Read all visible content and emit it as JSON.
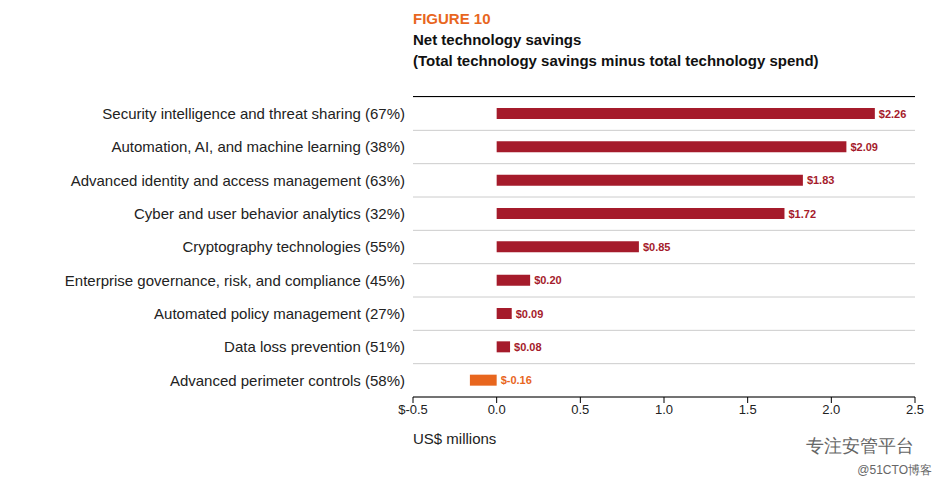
{
  "chart_data": {
    "type": "bar",
    "orientation": "horizontal",
    "title": "FIGURE 10",
    "subtitle": [
      "Net technology savings",
      "(Total technology savings minus total technology spend)"
    ],
    "x_label": "US$ millions",
    "categories": [
      "Security intelligence and threat sharing (67%)",
      "Automation, AI, and machine learning (38%)",
      "Advanced identity and access management (63%)",
      "Cyber and user behavior analytics (32%)",
      "Cryptography technologies (55%)",
      "Enterprise governance, risk, and compliance (45%)",
      "Automated policy management (27%)",
      "Data loss prevention (51%)",
      "Advanced perimeter controls (58%)"
    ],
    "values": [
      2.26,
      2.09,
      1.83,
      1.72,
      0.85,
      0.2,
      0.09,
      0.08,
      -0.16
    ],
    "value_labels": [
      "$2.26",
      "$2.09",
      "$1.83",
      "$1.72",
      "$0.85",
      "$0.20",
      "$0.09",
      "$0.08",
      "$-0.16"
    ],
    "data_labels": true,
    "colors": [
      "#a51b2b",
      "#a51b2b",
      "#a51b2b",
      "#a51b2b",
      "#a51b2b",
      "#a51b2b",
      "#a51b2b",
      "#a51b2b",
      "#e8661e"
    ],
    "xlim": [
      -0.5,
      2.5
    ],
    "xticks": [
      {
        "value": -0.5,
        "label": "$-0.5"
      },
      {
        "value": 0,
        "label": "0.0"
      },
      0.5,
      {
        "value": 1,
        "label": "1.0"
      },
      1.5,
      {
        "value": 2,
        "label": "2.0"
      },
      2.5
    ],
    "grid": true,
    "watermark": [
      "专注安管平台",
      "@51CTO博客"
    ]
  }
}
